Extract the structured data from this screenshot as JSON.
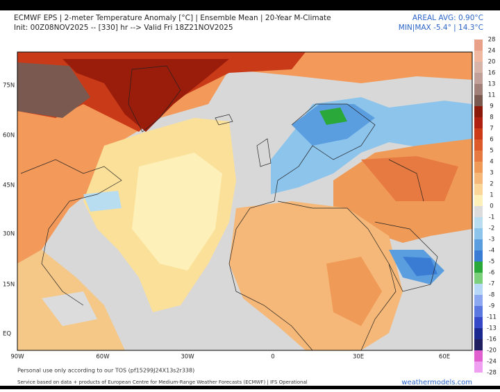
{
  "header": {
    "title": "ECMWF EPS | 2-meter Temperature Anomaly [°C] | Ensemble Mean | 20-Year M-Climate",
    "subtitle": "Init: 00Z08NOV2025 -- [330] hr --> Valid Fri 18Z21NOV2025",
    "areal_avg": "AREAL AVG: 0.90°C",
    "min_max": "MIN|MAX -5.4° | 14.3°C"
  },
  "map": {
    "lat_labels": [
      "75N",
      "60N",
      "45N",
      "30N",
      "15N",
      "EQ"
    ],
    "lon_labels": [
      "90W",
      "60W",
      "30W",
      "0",
      "30E",
      "60E"
    ]
  },
  "colorbar": {
    "labels": [
      28,
      24,
      20,
      16,
      13,
      11,
      9,
      8,
      7,
      6,
      5,
      4,
      3,
      2,
      1,
      0,
      -1,
      -2,
      -3,
      -4,
      -5,
      -6,
      -7,
      -8,
      -9,
      -11,
      -13,
      -16,
      -20,
      -24,
      -28
    ],
    "colors": [
      "#e8a088",
      "#f0b8a0",
      "#d8b4a8",
      "#c0a098",
      "#a08078",
      "#7a5a50",
      "#8b1a0a",
      "#b02010",
      "#cc3a18",
      "#dd5a2a",
      "#e77a40",
      "#f09a58",
      "#f5b878",
      "#fbd698",
      "#fdf0b8",
      "#dcdcdc",
      "#b8dcf0",
      "#8cc4ec",
      "#5a9ee0",
      "#3a7cd4",
      "#2aa83a",
      "#7cd07c",
      "#b8d8f8",
      "#8ca8f0",
      "#5a78e0",
      "#3448c8",
      "#1a2890",
      "#202060",
      "#e060d0",
      "#f0a0f0"
    ]
  },
  "footer": {
    "tos": "Personal use only according to our TOS (pf15299J24X13s2r338)",
    "service": "Service based on data + products of European Centre for Medium-Range Weather Forecasts (ECMWF) | IFS Operational",
    "site": "weathermodels.com"
  }
}
